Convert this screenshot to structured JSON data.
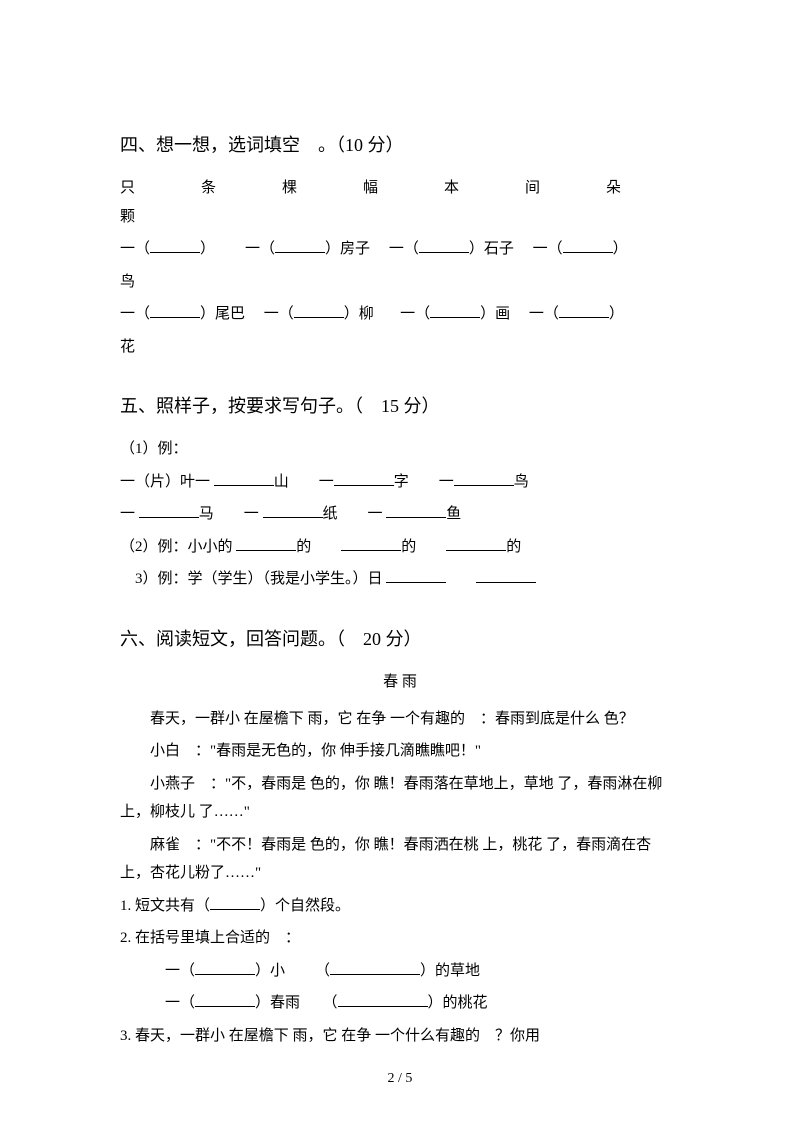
{
  "section4": {
    "title": "四、想一想，选词填空　。（10 分）",
    "options": "只　　条　　棵　　幅　　本　　间　　朵　　颗",
    "row1_a": "一（",
    "row1_b": "）",
    "row1_c": "一（",
    "row1_d": "）房子",
    "row1_e": "一（",
    "row1_f": "）石子",
    "row1_g": "一（",
    "row1_h": "）",
    "row1_end": "鸟",
    "row2_a": "一（",
    "row2_b": "）尾巴",
    "row2_c": "一（",
    "row2_d": "）柳",
    "row2_e": "一（",
    "row2_f": "）画",
    "row2_g": "一（",
    "row2_h": "）",
    "row2_end": "花"
  },
  "section5": {
    "title": "五、照样子，按要求写句子。（　15 分）",
    "ex1_label": "（1）例：",
    "ex1_line1": "一（片）叶一 ",
    "ex1_line1_a": "山　　一",
    "ex1_line1_b": "字　　一",
    "ex1_line1_c": "鸟",
    "ex1_line2_a": "一 ",
    "ex1_line2_b": "马　　一 ",
    "ex1_line2_c": "纸　　一 ",
    "ex1_line2_d": "鱼",
    "ex2": "（2）例：小小的 ",
    "ex2_a": "的　　",
    "ex2_b": "的　　",
    "ex2_c": "的",
    "ex3": "　3）例：学（学生）（我是小学生。）日 ",
    "ex3_gap": "　　"
  },
  "section6": {
    "title": "六、阅读短文，回答问题。（　20 分）",
    "reading_title": "春 雨",
    "p1": "春天，一群小 在屋檐下 雨，它 在争 一个有趣的　：春雨到底是什么 色？",
    "p2": "小白　：\"春雨是无色的，你 伸手接几滴瞧瞧吧！\"",
    "p3": "小燕子　：\"不，春雨是 色的，你 瞧！春雨落在草地上，草地 了，春雨淋在柳 上，柳枝儿 了……\"",
    "p4": "麻雀　：\"不不！春雨是 色的，你 瞧！春雨洒在桃 上，桃花 了，春雨滴在杏 上，杏花儿粉了……\"",
    "q1": "1. 短文共有（",
    "q1_b": "）个自然段。",
    "q2": "2. 在括号里填上合适的　：",
    "q2_line1_a": "一（",
    "q2_line1_b": "）小",
    "q2_line1_c": "（",
    "q2_line1_d": "）的草地",
    "q2_line2_a": "一（",
    "q2_line2_b": "）春雨",
    "q2_line2_c": "（",
    "q2_line2_d": "）的桃花",
    "q3": "3. 春天，一群小 在屋檐下 雨，它 在争 一个什么有趣的　？你用"
  },
  "pagenum": "2 / 5"
}
